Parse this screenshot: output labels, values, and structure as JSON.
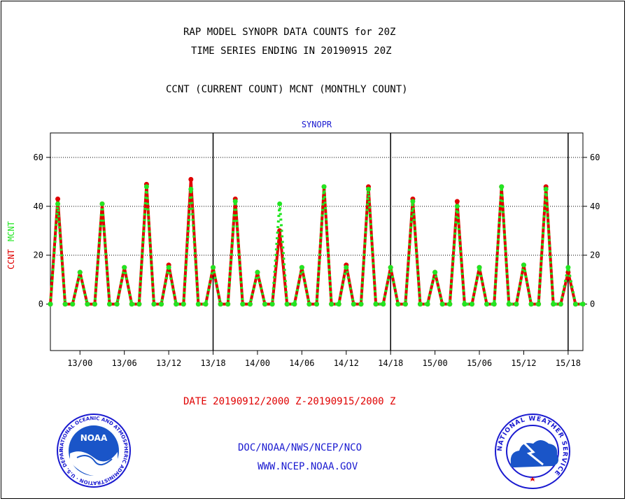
{
  "title_line1": "RAP MODEL SYNOPR DATA COUNTS for 20Z",
  "title_line2": "TIME SERIES ENDING IN 20190915 20Z",
  "subtitle": "CCNT (CURRENT COUNT) MCNT (MONTHLY COUNT)",
  "date_range": "DATE 20190912/2000 Z-20190915/2000 Z",
  "footer_line1": "DOC/NOAA/NWS/NCEP/NCO",
  "footer_line2": "WWW.NCEP.NOAA.GOV",
  "logos": {
    "noaa": {
      "label": "NOAA",
      "ring_text": "NATIONAL OCEANIC AND ATMOSPHERIC ADMINISTRATION · U.S. DEPARTMENT OF COMMERCE"
    },
    "nws": {
      "ring_text": "NATIONAL WEATHER SERVICE"
    }
  },
  "colors": {
    "ccnt": "#e00000",
    "mcnt": "#22e622",
    "text_blue": "#1a1ad0",
    "grid": "#000000"
  },
  "chart_data": {
    "type": "line",
    "title": "SYNOPR",
    "ylabel_left": "CCNT",
    "ylabel_right": "MCNT",
    "xlabel": "",
    "ylim": [
      -19,
      70
    ],
    "yticks": [
      0,
      20,
      40,
      60
    ],
    "grid": true,
    "x_unit": "hours from 2019-09-12 20Z",
    "xlim": [
      0,
      72
    ],
    "xticks": [
      {
        "x": 4,
        "label": "13/00"
      },
      {
        "x": 10,
        "label": "13/06"
      },
      {
        "x": 16,
        "label": "13/12"
      },
      {
        "x": 22,
        "label": "13/18"
      },
      {
        "x": 28,
        "label": "14/00"
      },
      {
        "x": 34,
        "label": "14/06"
      },
      {
        "x": 40,
        "label": "14/12"
      },
      {
        "x": 46,
        "label": "14/18"
      },
      {
        "x": 52,
        "label": "15/00"
      },
      {
        "x": 58,
        "label": "15/06"
      },
      {
        "x": 64,
        "label": "15/12"
      },
      {
        "x": 70,
        "label": "15/18"
      }
    ],
    "day_boundaries": [
      22,
      46,
      70
    ],
    "x": [
      0,
      1,
      2,
      3,
      4,
      5,
      6,
      7,
      8,
      9,
      10,
      11,
      12,
      13,
      14,
      15,
      16,
      17,
      18,
      19,
      20,
      21,
      22,
      23,
      24,
      25,
      26,
      27,
      28,
      29,
      30,
      31,
      32,
      33,
      34,
      35,
      36,
      37,
      38,
      39,
      40,
      41,
      42,
      43,
      44,
      45,
      46,
      47,
      48,
      49,
      50,
      51,
      52,
      53,
      54,
      55,
      56,
      57,
      58,
      59,
      60,
      61,
      62,
      63,
      64,
      65,
      66,
      67,
      68,
      69,
      70,
      71,
      72
    ],
    "series": [
      {
        "name": "CCNT",
        "values": [
          0,
          43,
          0,
          0,
          13,
          0,
          0,
          41,
          0,
          0,
          15,
          0,
          0,
          49,
          0,
          0,
          16,
          0,
          0,
          51,
          0,
          0,
          15,
          0,
          0,
          43,
          0,
          0,
          13,
          0,
          0,
          30,
          0,
          0,
          15,
          0,
          0,
          48,
          0,
          0,
          16,
          0,
          0,
          48,
          0,
          0,
          15,
          0,
          0,
          43,
          0,
          0,
          13,
          0,
          0,
          42,
          0,
          0,
          15,
          0,
          0,
          48,
          0,
          0,
          16,
          0,
          0,
          48,
          0,
          0,
          13,
          0,
          0
        ]
      },
      {
        "name": "MCNT",
        "values": [
          0,
          41,
          0,
          0,
          13,
          0,
          0,
          41,
          0,
          0,
          15,
          0,
          0,
          48,
          0,
          0,
          15,
          0,
          0,
          47,
          0,
          0,
          15,
          0,
          0,
          42,
          0,
          0,
          13,
          0,
          0,
          41,
          0,
          0,
          15,
          0,
          0,
          48,
          0,
          0,
          15,
          0,
          0,
          47,
          0,
          0,
          15,
          0,
          0,
          42,
          0,
          0,
          13,
          0,
          0,
          40,
          0,
          0,
          15,
          0,
          0,
          48,
          0,
          0,
          16,
          0,
          0,
          47,
          0,
          0,
          15,
          0,
          0
        ]
      }
    ]
  }
}
